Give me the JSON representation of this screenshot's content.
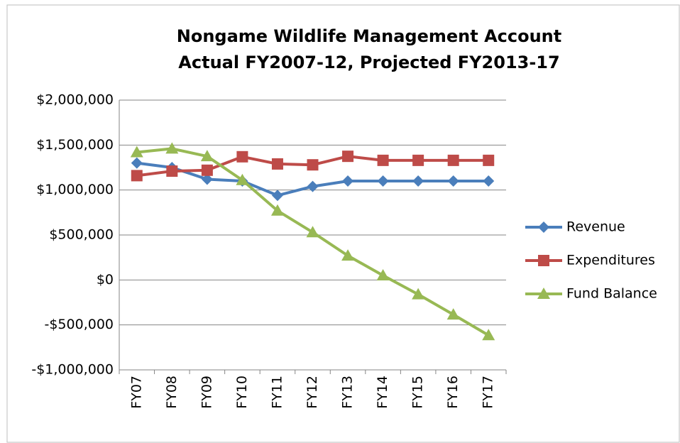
{
  "chart_data": {
    "type": "line",
    "title": "Nongame Wildlife Management Account",
    "subtitle": "Actual FY2007-12, Projected FY2013-17",
    "categories": [
      "FY07",
      "FY08",
      "FY09",
      "FY10",
      "FY11",
      "FY12",
      "FY13",
      "FY14",
      "FY15",
      "FY16",
      "FY17"
    ],
    "series": [
      {
        "name": "Revenue",
        "color": "#4a7ebb",
        "marker": "diamond",
        "values": [
          1300000,
          1250000,
          1120000,
          1100000,
          940000,
          1040000,
          1100000,
          1100000,
          1100000,
          1100000,
          1100000
        ]
      },
      {
        "name": "Expenditures",
        "color": "#be4b48",
        "marker": "square",
        "values": [
          1160000,
          1210000,
          1220000,
          1370000,
          1290000,
          1280000,
          1375000,
          1330000,
          1330000,
          1330000,
          1330000
        ]
      },
      {
        "name": "Fund Balance",
        "color": "#98b954",
        "marker": "triangle",
        "values": [
          1420000,
          1460000,
          1375000,
          1110000,
          770000,
          530000,
          270000,
          50000,
          -160000,
          -385000,
          -615000
        ]
      }
    ],
    "ylim": [
      -1000000,
      2000000
    ],
    "yticks": [
      {
        "value": -1000000,
        "label": "-$1,000,000"
      },
      {
        "value": -500000,
        "label": "-$500,000"
      },
      {
        "value": 0,
        "label": "$0"
      },
      {
        "value": 500000,
        "label": "$500,000"
      },
      {
        "value": 1000000,
        "label": "$1,000,000"
      },
      {
        "value": 1500000,
        "label": "$1,500,000"
      },
      {
        "value": 2000000,
        "label": "$2,000,000"
      }
    ],
    "grid": true,
    "legend": "right"
  }
}
